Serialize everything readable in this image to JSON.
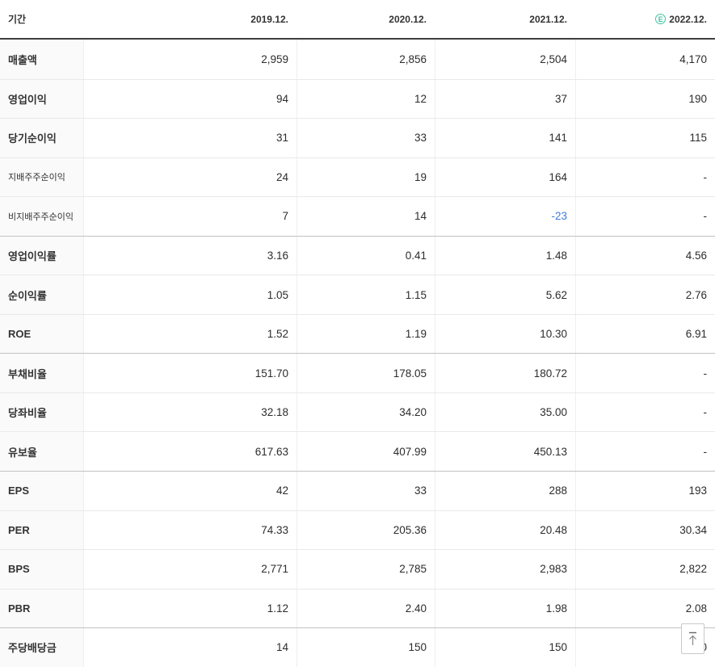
{
  "header": {
    "period_label": "기간",
    "columns": [
      {
        "label": "2019.12.",
        "estimate": false
      },
      {
        "label": "2020.12.",
        "estimate": false
      },
      {
        "label": "2021.12.",
        "estimate": false
      },
      {
        "label": "2022.12.",
        "estimate": true
      }
    ],
    "estimate_icon_letter": "E"
  },
  "table": {
    "rows": [
      {
        "label": "매출액",
        "values": [
          "2,959",
          "2,856",
          "2,504",
          "4,170"
        ]
      },
      {
        "label": "영업이익",
        "values": [
          "94",
          "12",
          "37",
          "190"
        ]
      },
      {
        "label": "당기순이익",
        "values": [
          "31",
          "33",
          "141",
          "115"
        ]
      },
      {
        "label": "지배주주순이익",
        "values": [
          "24",
          "19",
          "164",
          "-"
        ],
        "sub": true
      },
      {
        "label": "비지배주주순이익",
        "values": [
          "7",
          "14",
          "-23",
          "-"
        ],
        "sub": true
      },
      {
        "label": "영업이익률",
        "values": [
          "3.16",
          "0.41",
          "1.48",
          "4.56"
        ],
        "group_start": true
      },
      {
        "label": "순이익률",
        "values": [
          "1.05",
          "1.15",
          "5.62",
          "2.76"
        ]
      },
      {
        "label": "ROE",
        "values": [
          "1.52",
          "1.19",
          "10.30",
          "6.91"
        ]
      },
      {
        "label": "부채비율",
        "values": [
          "151.70",
          "178.05",
          "180.72",
          "-"
        ],
        "group_start": true
      },
      {
        "label": "당좌비율",
        "values": [
          "32.18",
          "34.20",
          "35.00",
          "-"
        ]
      },
      {
        "label": "유보율",
        "values": [
          "617.63",
          "407.99",
          "450.13",
          "-"
        ]
      },
      {
        "label": "EPS",
        "values": [
          "42",
          "33",
          "288",
          "193"
        ],
        "group_start": true
      },
      {
        "label": "PER",
        "values": [
          "74.33",
          "205.36",
          "20.48",
          "30.34"
        ]
      },
      {
        "label": "BPS",
        "values": [
          "2,771",
          "2,785",
          "2,983",
          "2,822"
        ]
      },
      {
        "label": "PBR",
        "values": [
          "1.12",
          "2.40",
          "1.98",
          "2.08"
        ]
      },
      {
        "label": "주당배당금",
        "values": [
          "14",
          "150",
          "150",
          "150"
        ],
        "group_start": true
      }
    ]
  },
  "colors": {
    "negative_value": "#3e7bdb",
    "estimate_accent": "#3fc4a0",
    "header_border": "#3f3f3f",
    "group_separator": "#c2c2c2",
    "row_separator": "#e9e9e9",
    "label_column_bg": "#fafafa"
  }
}
